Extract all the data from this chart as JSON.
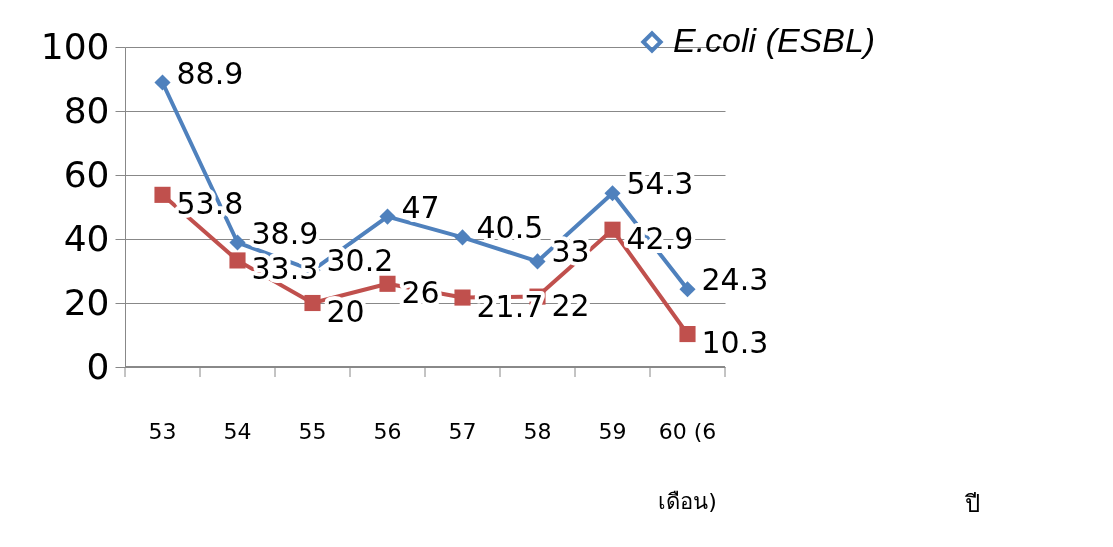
{
  "chart_data": {
    "type": "line",
    "categories": [
      "53",
      "54",
      "55",
      "56",
      "57",
      "58",
      "59",
      "60 (6 เดือน)"
    ],
    "annotations": [
      "ปี"
    ],
    "series": [
      {
        "name": "E.coli (ESBL)",
        "color": "#4f81bd",
        "marker": "diamond",
        "values": [
          88.9,
          38.9,
          30.2,
          47,
          40.5,
          33,
          54.3,
          24.3
        ]
      },
      {
        "color": "#c0504d",
        "marker": "square",
        "values": [
          53.8,
          33.3,
          20,
          26,
          21.7,
          22,
          42.9,
          10.3
        ]
      }
    ],
    "ylim": [
      0,
      100
    ],
    "yticks": [
      0,
      20,
      40,
      60,
      80,
      100
    ],
    "grid": "y",
    "legend": "top right",
    "data_labels": true
  }
}
